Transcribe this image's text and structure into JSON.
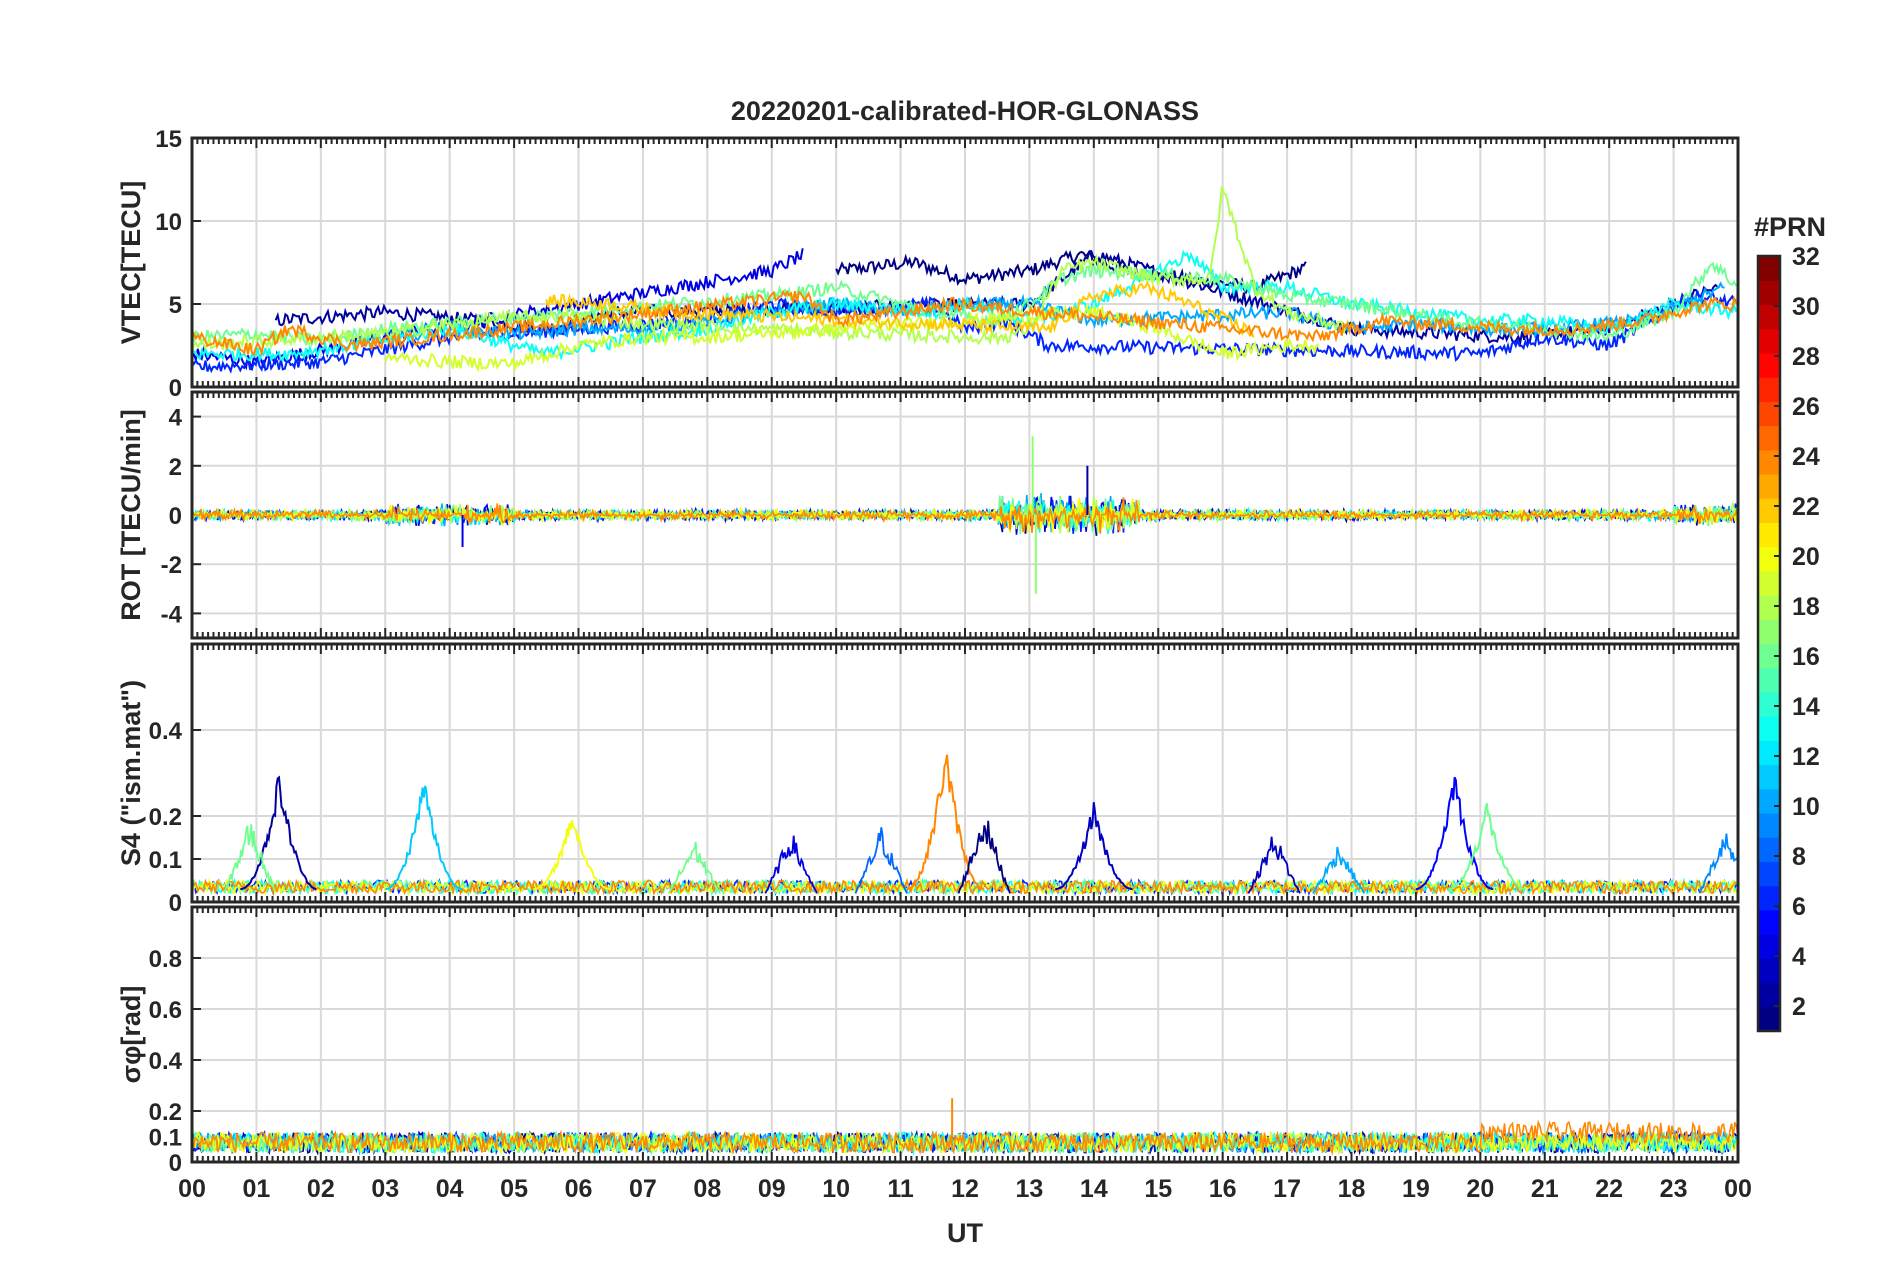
{
  "chart_data": {
    "type": "line",
    "title": "20220201-calibrated-HOR-GLONASS",
    "xlabel": "UT",
    "x_ticks": [
      "00",
      "01",
      "02",
      "03",
      "04",
      "05",
      "06",
      "07",
      "08",
      "09",
      "10",
      "11",
      "12",
      "13",
      "14",
      "15",
      "16",
      "17",
      "18",
      "19",
      "20",
      "21",
      "22",
      "23",
      "00"
    ],
    "xlim_hours": [
      0,
      24
    ],
    "grid": true,
    "colorbar": {
      "label": "#PRN",
      "range": [
        1,
        32
      ],
      "ticks": [
        "2",
        "4",
        "6",
        "8",
        "10",
        "12",
        "14",
        "16",
        "18",
        "20",
        "22",
        "24",
        "26",
        "28",
        "30",
        "32"
      ],
      "colormap": "jet"
    },
    "panels": [
      {
        "ylabel": "VTEC[TECU]",
        "ylim": [
          0,
          15
        ],
        "yticks": [
          "0",
          "5",
          "10",
          "15"
        ],
        "series": [
          {
            "prn": 1,
            "x": [
              10,
              11.2,
              12,
              13,
              13.8,
              14.5,
              15.5,
              16.5,
              17.3
            ],
            "y": [
              7,
              7.5,
              6.5,
              7,
              8,
              7,
              6.5,
              6,
              7.2
            ]
          },
          {
            "prn": 2,
            "x": [
              1.3,
              3,
              4.5,
              5.5,
              6.5,
              13,
              13.5,
              14,
              18,
              20.5,
              22,
              23.3,
              23.7
            ],
            "y": [
              4,
              4.5,
              4,
              3.5,
              4.5,
              5,
              6.5,
              8,
              3.5,
              3,
              3.5,
              5.5,
              6
            ]
          },
          {
            "prn": 4,
            "x": [
              0,
              1,
              2,
              3,
              9,
              9.5
            ],
            "y": [
              2,
              1.5,
              2.2,
              3,
              7,
              8
            ]
          },
          {
            "prn": 6,
            "x": [
              0,
              2,
              4,
              6,
              8,
              9,
              10,
              11.5,
              12,
              12.6,
              13.3,
              20,
              21,
              22,
              23.3,
              24
            ],
            "y": [
              1.2,
              1.5,
              3,
              3.5,
              4,
              5,
              4.5,
              5,
              3.5,
              4,
              2.5,
              2,
              3,
              2.5,
              5.5,
              5
            ]
          },
          {
            "prn": 10,
            "x": [
              3,
              4,
              5,
              6,
              7,
              8,
              9,
              10,
              11,
              12,
              13,
              14,
              17,
              17.5,
              18,
              19,
              20,
              21,
              22.5,
              23.8
            ],
            "y": [
              3,
              3.5,
              3.2,
              3.5,
              3.5,
              4,
              4.5,
              5,
              4.5,
              5,
              5,
              4,
              4.5,
              4,
              3.5,
              3.8,
              3.5,
              3.5,
              4,
              6
            ]
          },
          {
            "prn": 13,
            "x": [
              0,
              1.5,
              3,
              4,
              5.5,
              7,
              8,
              9,
              10,
              11.5,
              12,
              13,
              14,
              15.5,
              16,
              17,
              18,
              19,
              20,
              21,
              22,
              23,
              24
            ],
            "y": [
              2,
              2,
              2.8,
              3.5,
              2,
              3,
              3.5,
              4.5,
              5,
              4.5,
              5,
              4,
              5,
              8,
              6,
              6,
              5,
              4.5,
              4,
              4,
              3.5,
              5,
              4.5
            ]
          },
          {
            "prn": 16,
            "x": [
              0,
              1,
              2,
              3,
              9,
              10,
              11,
              12,
              12.5,
              13,
              13.5,
              14,
              16,
              17,
              18,
              19.5,
              21,
              22,
              23,
              23.6,
              24
            ],
            "y": [
              3,
              3.2,
              2.8,
              3.5,
              5.5,
              6,
              5,
              4.2,
              4,
              5,
              6.5,
              7,
              6.5,
              5.5,
              5,
              4,
              3.5,
              3,
              4.5,
              7.5,
              6
            ]
          },
          {
            "prn": 18,
            "x": [
              0,
              2,
              3,
              4.5,
              5,
              6,
              7,
              12,
              12.6,
              13,
              13.5,
              14,
              15,
              15.8,
              16,
              16.5,
              17,
              18
            ],
            "y": [
              2.5,
              3,
              3.2,
              4,
              4.2,
              4.2,
              3.8,
              3,
              3,
              3.5,
              7,
              7.5,
              6.5,
              6.5,
              12,
              6,
              4.5,
              3.5
            ]
          },
          {
            "prn": 19,
            "x": [
              3,
              4,
              5,
              6,
              7,
              8,
              14,
              15,
              16,
              17,
              17.5
            ],
            "y": [
              1.8,
              1.5,
              1.4,
              2.5,
              3,
              3,
              4.5,
              3.5,
              2,
              2.5,
              2.5
            ]
          },
          {
            "prn": 22,
            "x": [
              5.5,
              6.5,
              7.5,
              13.3,
              14,
              14.8,
              15.5,
              16.5
            ],
            "y": [
              5.2,
              5,
              4.5,
              3.5,
              5.5,
              6,
              5,
              3.2
            ]
          },
          {
            "prn": 24,
            "x": [
              0,
              1,
              1.5,
              2.5,
              9.5,
              10,
              11,
              11.8,
              17.5,
              18.5,
              20.5,
              21.5,
              22.5,
              23.5,
              24
            ],
            "y": [
              3,
              2.2,
              3.5,
              2.5,
              5.5,
              4,
              4.5,
              5,
              3,
              4,
              3.5,
              3.5,
              4,
              5,
              5
            ]
          }
        ]
      },
      {
        "ylabel": "ROT [TECU/min]",
        "ylim": [
          -5,
          5
        ],
        "yticks": [
          "-4",
          "-2",
          "0",
          "2",
          "4"
        ],
        "series_summary": "Rate of TEC for all tracked PRNs, fluctuating around 0 TECU/min; largest excursions between 13 and 14.5 UT reaching about +3.2 and -3.2 TECU/min",
        "peaks": [
          {
            "prn": 17,
            "x": 13.05,
            "y": 3.2
          },
          {
            "prn": 17,
            "x": 13.1,
            "y": -3.2
          },
          {
            "prn": 2,
            "x": 13.9,
            "y": 2.0
          },
          {
            "prn": 4,
            "x": 4.2,
            "y": -1.3
          }
        ]
      },
      {
        "ylabel": "S4 (\"ism.mat\")",
        "ylim": [
          0,
          0.6
        ],
        "yticks": [
          "0",
          "0.1",
          "0.2",
          "0.4"
        ],
        "peaks": [
          {
            "prn": 2,
            "x": 1.35,
            "y": 0.28
          },
          {
            "prn": 11,
            "x": 3.6,
            "y": 0.27
          },
          {
            "prn": 20,
            "x": 5.9,
            "y": 0.19
          },
          {
            "prn": 24,
            "x": 11.7,
            "y": 0.35
          },
          {
            "prn": 3,
            "x": 14,
            "y": 0.21
          },
          {
            "prn": 5,
            "x": 19.6,
            "y": 0.29
          },
          {
            "prn": 16,
            "x": 20.1,
            "y": 0.21
          }
        ]
      },
      {
        "ylabel": "σφ[rad]",
        "ylim": [
          0,
          1
        ],
        "yticks": [
          "0",
          "0.1",
          "0.2",
          "0.4",
          "0.6",
          "0.8"
        ],
        "series_summary": "Phase scintillation index for all PRNs between about 0.02 and 0.2 rad; peak about 0.25 rad near 11.8 UT",
        "peaks": [
          {
            "prn": 24,
            "x": 11.8,
            "y": 0.25
          }
        ]
      }
    ]
  }
}
